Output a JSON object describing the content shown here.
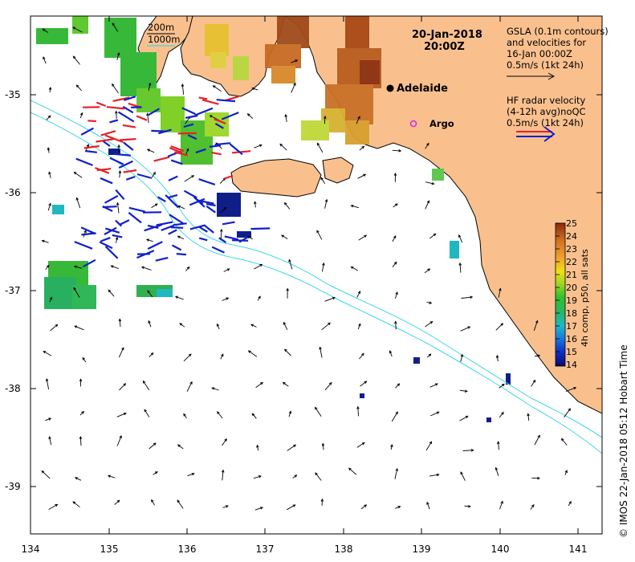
{
  "map": {
    "date": "20-Jan-2018",
    "time": "20:00Z",
    "gsla_legend": {
      "line1": "GSLA (0.1m contours)",
      "line2": "and velocities for",
      "line3": "16-Jan 00:00Z",
      "scale": "0.5m/s (1kt 24h)"
    },
    "hf_legend": {
      "line1": "HF radar velocity",
      "line2": "(4-12h avg)noQC",
      "scale": "0.5m/s (1kt 24h)"
    },
    "isobath_legend": {
      "deep": "200m",
      "shallow": "1000m"
    },
    "places": [
      {
        "name": "Adelaide",
        "lon": 138.6,
        "lat": -34.93
      },
      {
        "name": "Argo",
        "lon": 138.88,
        "lat": -35.3
      }
    ],
    "axes": {
      "x_ticks": [
        "134",
        "135",
        "136",
        "137",
        "138",
        "139",
        "140",
        "141"
      ],
      "y_ticks": [
        "-35",
        "-36",
        "-37",
        "-38",
        "-39"
      ],
      "xlim": [
        134,
        141.3
      ],
      "ylim": [
        -39.45,
        -34.2
      ]
    },
    "colorbar": {
      "title": "4h comp, p50, all sats",
      "ticks": [
        "25",
        "24",
        "23",
        "22",
        "21",
        "20",
        "19",
        "18",
        "17",
        "16",
        "15",
        "14"
      ],
      "range": [
        14,
        25
      ]
    },
    "credit": "© IMOS 22-Jan-2018 05:12 Hobart Time",
    "colors": {
      "land": "#f9c08e",
      "isobath": "#3fd6e8",
      "hf_red": "#e8202a",
      "hf_blue": "#1020c8",
      "adelaide_marker": "#000000",
      "argo_marker": "#e020e0"
    }
  }
}
